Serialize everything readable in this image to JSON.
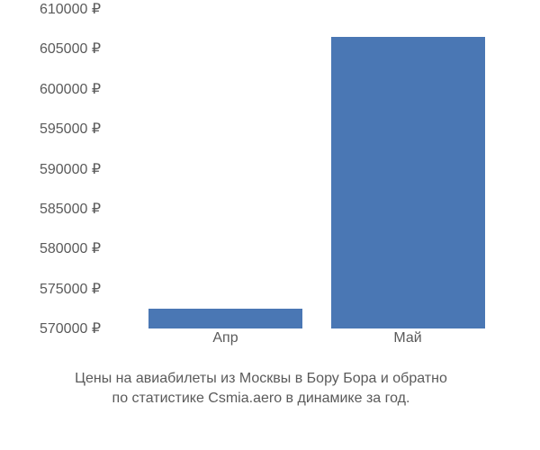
{
  "chart": {
    "type": "bar",
    "ylim": [
      570000,
      610000
    ],
    "yticks": [
      "570000 ₽",
      "575000 ₽",
      "580000 ₽",
      "585000 ₽",
      "590000 ₽",
      "595000 ₽",
      "600000 ₽",
      "605000 ₽",
      "610000 ₽"
    ],
    "ytick_values": [
      570000,
      575000,
      580000,
      585000,
      590000,
      595000,
      600000,
      605000,
      610000
    ],
    "categories": [
      "Апр",
      "Май"
    ],
    "values": [
      572500,
      606500
    ],
    "bar_color": "#4a77b4",
    "bar_width_pct": 38,
    "bar_positions_pct": [
      10,
      55
    ],
    "background_color": "#ffffff",
    "tick_color": "#5a5a5a",
    "tick_fontsize": 16
  },
  "caption": {
    "line1": "Цены на авиабилеты из Москвы в Бору Бора и обратно",
    "line2": "по статистике Csmia.aero в динамике за год."
  }
}
